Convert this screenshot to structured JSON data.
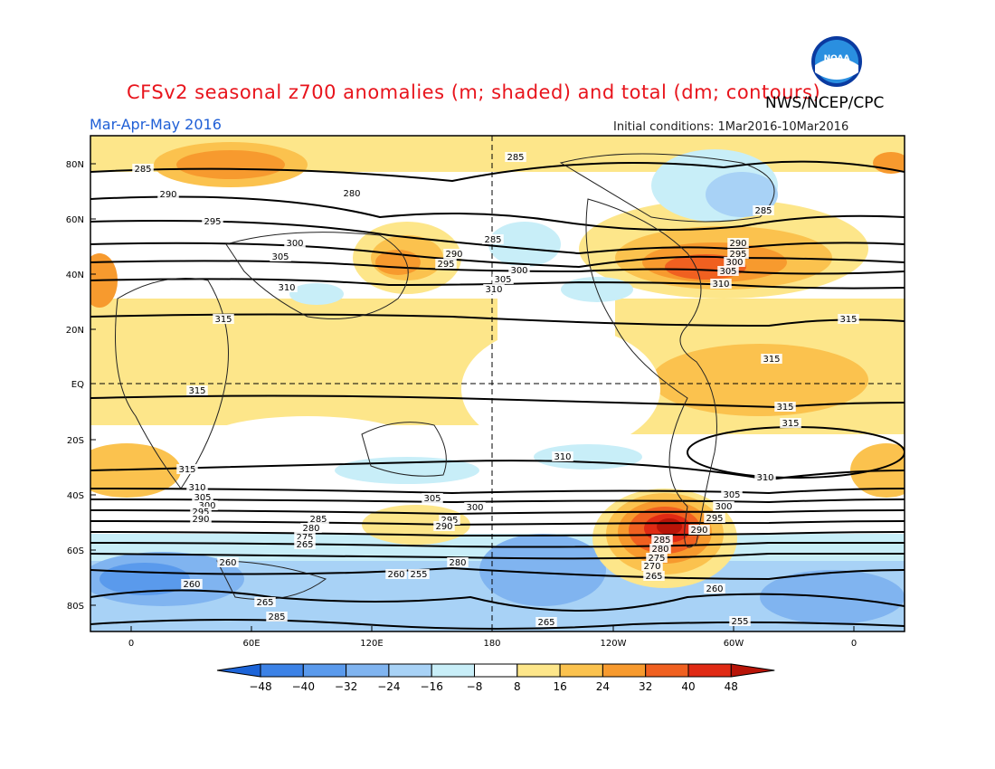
{
  "header": {
    "title": "CFSv2 seasonal z700 anomalies (m; shaded) and total (dm; contours)",
    "agency": "NWS/NCEP/CPC",
    "period": "Mar-Apr-May 2016",
    "initial_conditions": "Initial conditions: 1Mar2016-10Mar2016",
    "logo_text": "NOAA"
  },
  "axes": {
    "lat_labels": [
      "80N",
      "60N",
      "40N",
      "20N",
      "EQ",
      "20S",
      "40S",
      "60S",
      "80S"
    ],
    "lon_labels": [
      "0",
      "60E",
      "120E",
      "180",
      "120W",
      "60W",
      "0"
    ]
  },
  "colorbar": {
    "ticks": [
      "-48",
      "-40",
      "-32",
      "-24",
      "-16",
      "-8",
      "8",
      "16",
      "24",
      "32",
      "40",
      "48"
    ],
    "colors": [
      "#1c64d8",
      "#3c82e6",
      "#5a9aec",
      "#80b4f0",
      "#a8d2f6",
      "#c8eef8",
      "#ffffff",
      "#fde68a",
      "#fbc24e",
      "#f79a2e",
      "#f06020",
      "#e02a14",
      "#b81408"
    ]
  },
  "contour_labels": {
    "northern": [
      "285",
      "280",
      "290",
      "295",
      "300",
      "305",
      "310",
      "315",
      "285",
      "290",
      "295",
      "300",
      "305",
      "310",
      "285",
      "285",
      "290",
      "295",
      "300",
      "305",
      "310",
      "315",
      "315"
    ],
    "tropics": [
      "315",
      "315",
      "315"
    ],
    "southern": [
      "315",
      "310",
      "305",
      "300",
      "295",
      "290",
      "285",
      "280",
      "275",
      "265",
      "260",
      "260",
      "265",
      "285",
      "305",
      "300",
      "295",
      "290",
      "280",
      "260",
      "255",
      "265",
      "310",
      "310",
      "305",
      "300",
      "295",
      "290",
      "285",
      "280",
      "275",
      "270",
      "265",
      "260",
      "255"
    ]
  }
}
